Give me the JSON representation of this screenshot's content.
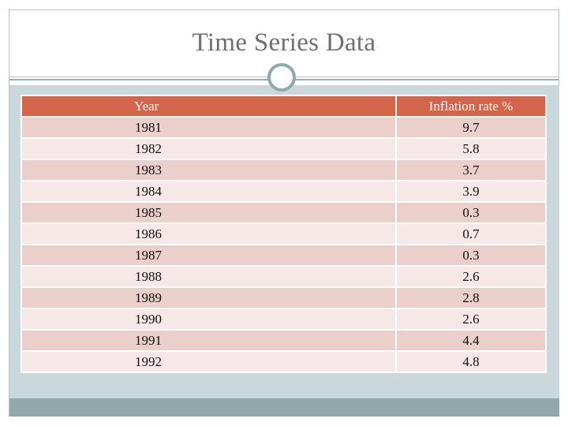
{
  "slide": {
    "title": "Time Series Data"
  },
  "table": {
    "headers": [
      "Year",
      "Inflation rate %"
    ],
    "rows": [
      [
        "1981",
        "9.7"
      ],
      [
        "1982",
        "5.8"
      ],
      [
        "1983",
        "3.7"
      ],
      [
        "1984",
        "3.9"
      ],
      [
        "1985",
        "0.3"
      ],
      [
        "1986",
        "0.7"
      ],
      [
        "1987",
        "0.3"
      ],
      [
        "1988",
        "2.6"
      ],
      [
        "1989",
        "2.8"
      ],
      [
        "1990",
        "2.6"
      ],
      [
        "1991",
        "4.4"
      ],
      [
        "1992",
        "4.8"
      ]
    ]
  },
  "colors": {
    "header": "#d4644a",
    "row_odd": "#ebcfcb",
    "row_even": "#f5e8e6",
    "band": "#cad8db",
    "accent": "#8fa9ad"
  }
}
